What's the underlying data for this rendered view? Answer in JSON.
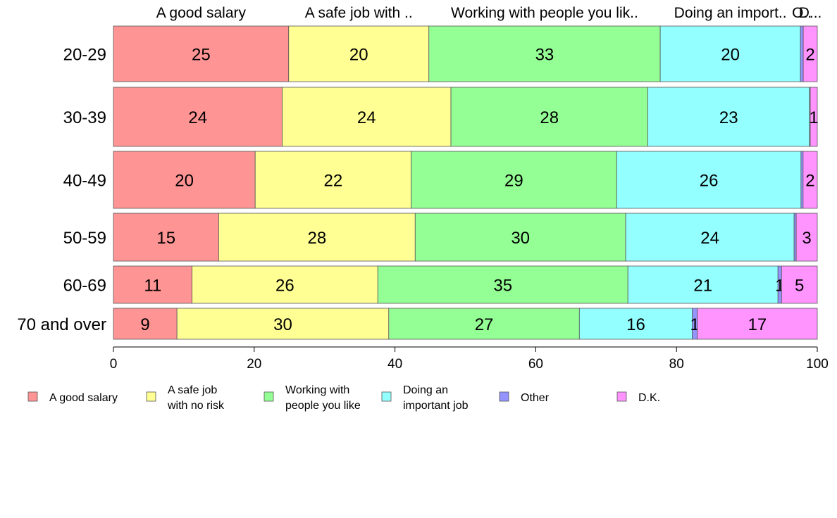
{
  "chart_data": {
    "type": "bar",
    "orientation": "horizontal",
    "stacked": true,
    "categories": [
      "20-29",
      "30-39",
      "40-49",
      "50-59",
      "60-69",
      "70 and over"
    ],
    "series": [
      {
        "name": "A good salary",
        "values": [
          25,
          24,
          20,
          15,
          11,
          9
        ]
      },
      {
        "name": "A safe job with no risk",
        "values": [
          20,
          24,
          22,
          28,
          26,
          30
        ]
      },
      {
        "name": "Working with people you like",
        "values": [
          33,
          28,
          29,
          30,
          35,
          27
        ]
      },
      {
        "name": "Doing an important job",
        "values": [
          20,
          23,
          26,
          24,
          21,
          16
        ]
      },
      {
        "name": "Other",
        "values": [
          0.4,
          0.1,
          0.3,
          0.3,
          0.5,
          0.7
        ]
      },
      {
        "name": "D.K.",
        "values": [
          2,
          1,
          2,
          3,
          5,
          17
        ]
      }
    ],
    "segment_labels": [
      [
        "25",
        "20",
        "33",
        "20",
        "",
        "2"
      ],
      [
        "24",
        "24",
        "28",
        "23",
        "",
        "1"
      ],
      [
        "20",
        "22",
        "29",
        "26",
        "",
        "2"
      ],
      [
        "15",
        "28",
        "30",
        "24",
        "",
        "3"
      ],
      [
        "11",
        "26",
        "35",
        "21",
        "1",
        "5"
      ],
      [
        "9",
        "30",
        "27",
        "16",
        "1",
        "17"
      ]
    ],
    "top_labels": [
      "A good salary",
      "A safe job with ..",
      "Working with people you lik..",
      "Doing an import..",
      "O..",
      "D..."
    ],
    "legend_labels": [
      [
        "A good salary"
      ],
      [
        "A safe job",
        "with no risk"
      ],
      [
        "Working with",
        "people you like"
      ],
      [
        "Doing an",
        "important job"
      ],
      [
        "Other"
      ],
      [
        "D.K."
      ]
    ],
    "colors": [
      "#ff9494",
      "#ffff94",
      "#94ff94",
      "#94ffff",
      "#9494ff",
      "#ff94ff"
    ],
    "xlim": [
      0,
      100
    ],
    "xticks": [
      0,
      20,
      40,
      60,
      80,
      100
    ],
    "grid": false,
    "legend_position": "bottom"
  }
}
